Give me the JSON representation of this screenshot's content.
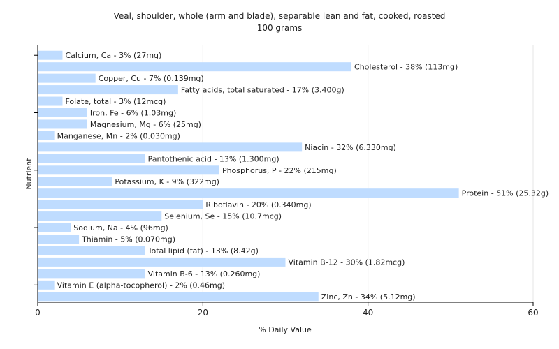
{
  "chart_data": {
    "type": "bar",
    "orientation": "horizontal",
    "title": "Veal, shoulder, whole (arm and blade), separable lean and fat, cooked, roasted",
    "subtitle": "100 grams",
    "xlabel": "% Daily Value",
    "ylabel": "Nutrient",
    "xlim": [
      0,
      60
    ],
    "xticks": [
      0,
      20,
      40,
      60
    ],
    "grid": true,
    "bar_color": "#bfdcff",
    "categories": [
      "Calcium, Ca",
      "Cholesterol",
      "Copper, Cu",
      "Fatty acids, total saturated",
      "Folate, total",
      "Iron, Fe",
      "Magnesium, Mg",
      "Manganese, Mn",
      "Niacin",
      "Pantothenic acid",
      "Phosphorus, P",
      "Potassium, K",
      "Protein",
      "Riboflavin",
      "Selenium, Se",
      "Sodium, Na",
      "Thiamin",
      "Total lipid (fat)",
      "Vitamin B-12",
      "Vitamin B-6",
      "Vitamin E (alpha-tocopherol)",
      "Zinc, Zn"
    ],
    "values": [
      3,
      38,
      7,
      17,
      3,
      6,
      6,
      2,
      32,
      13,
      22,
      9,
      51,
      20,
      15,
      4,
      5,
      13,
      30,
      13,
      2,
      34
    ],
    "labels": [
      "Calcium, Ca - 3% (27mg)",
      "Cholesterol - 38% (113mg)",
      "Copper, Cu - 7% (0.139mg)",
      "Fatty acids, total saturated - 17% (3.400g)",
      "Folate, total - 3% (12mcg)",
      "Iron, Fe - 6% (1.03mg)",
      "Magnesium, Mg - 6% (25mg)",
      "Manganese, Mn - 2% (0.030mg)",
      "Niacin - 32% (6.330mg)",
      "Pantothenic acid - 13% (1.300mg)",
      "Phosphorus, P - 22% (215mg)",
      "Potassium, K - 9% (322mg)",
      "Protein - 51% (25.32g)",
      "Riboflavin - 20% (0.340mg)",
      "Selenium, Se - 15% (10.7mcg)",
      "Sodium, Na - 4% (96mg)",
      "Thiamin - 5% (0.070mg)",
      "Total lipid (fat) - 13% (8.42g)",
      "Vitamin B-12 - 30% (1.82mcg)",
      "Vitamin B-6 - 13% (0.260mg)",
      "Vitamin E (alpha-tocopherol) - 2% (0.46mg)",
      "Zinc, Zn - 34% (5.12mg)"
    ]
  }
}
